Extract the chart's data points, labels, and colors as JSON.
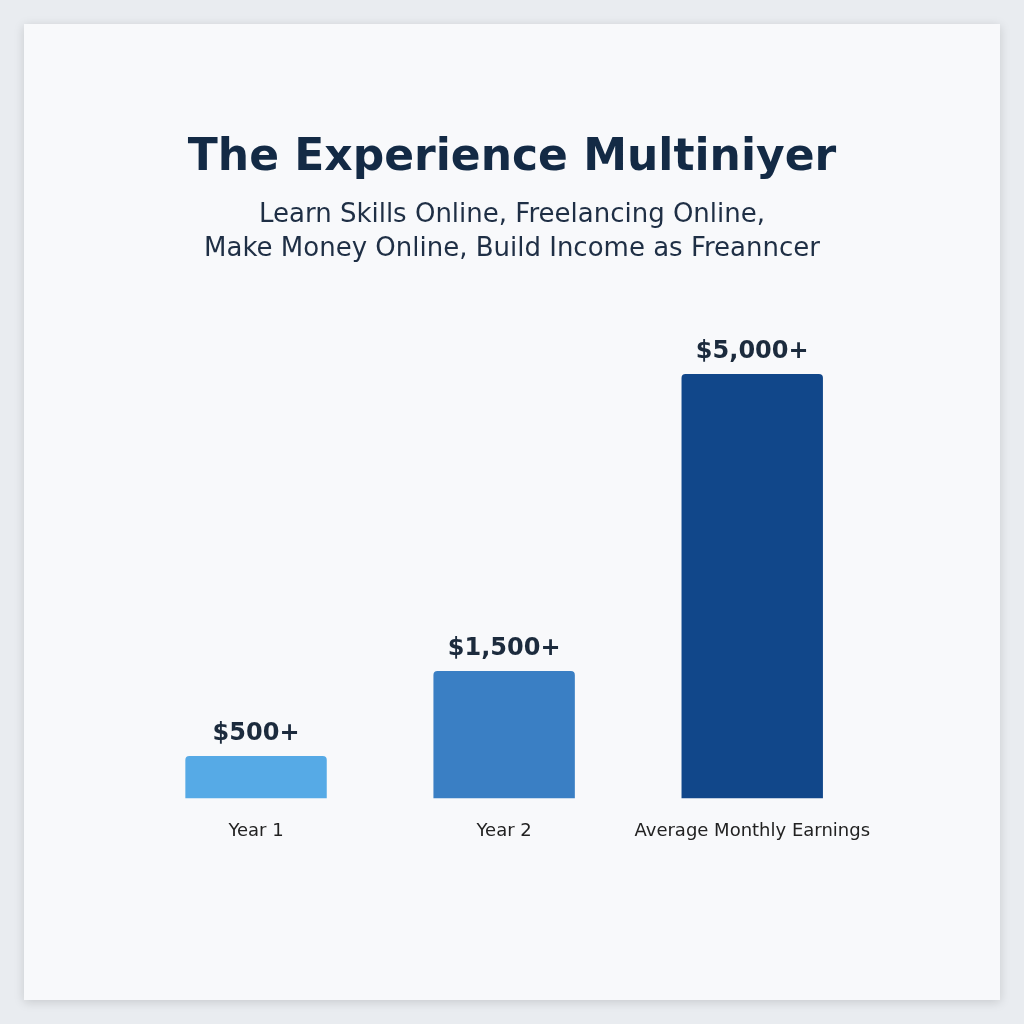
{
  "chart_data": {
    "type": "bar",
    "title": "The Experience Multiniyer",
    "subtitle": "Learn Skills Online, Freelancing Online,\nMake Money Online, Build Income as Freanncer",
    "categories": [
      "Year 1",
      "Year 2",
      "Average Monthly Earnings"
    ],
    "values": [
      500,
      1500,
      5000
    ],
    "colors": [
      "#56aae6",
      "#3a7fc4",
      "#11478a"
    ],
    "value_labels": [
      "$500+",
      "$1,500+",
      "$5,000+"
    ],
    "ylim": [
      0,
      5000
    ],
    "grid": false,
    "legend": false
  }
}
